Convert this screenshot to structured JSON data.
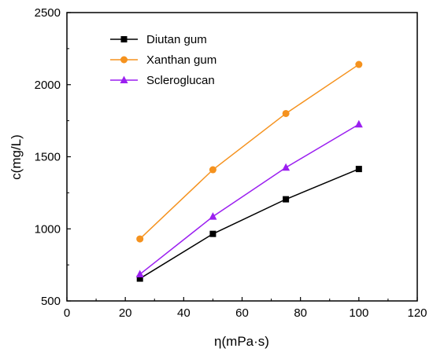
{
  "chart_data": {
    "type": "line",
    "title": "",
    "xlabel": "η(mPa·s)",
    "ylabel": "c(mg/L)",
    "xlim": [
      0,
      120
    ],
    "ylim": [
      500,
      2500
    ],
    "xticks": [
      0,
      20,
      40,
      60,
      80,
      100,
      120
    ],
    "yticks": [
      500,
      1000,
      1500,
      2000,
      2500
    ],
    "x": [
      25,
      50,
      75,
      100
    ],
    "grid": false,
    "legend_position": "top-left",
    "series": [
      {
        "name": "Diutan gum",
        "color": "#000000",
        "marker": "square",
        "values": [
          655,
          965,
          1205,
          1415
        ]
      },
      {
        "name": "Xanthan gum",
        "color": "#f5921e",
        "marker": "circle",
        "values": [
          930,
          1410,
          1800,
          2140
        ]
      },
      {
        "name": "Scleroglucan",
        "color": "#9b1ff0",
        "marker": "triangle",
        "values": [
          685,
          1085,
          1425,
          1725
        ]
      }
    ]
  }
}
